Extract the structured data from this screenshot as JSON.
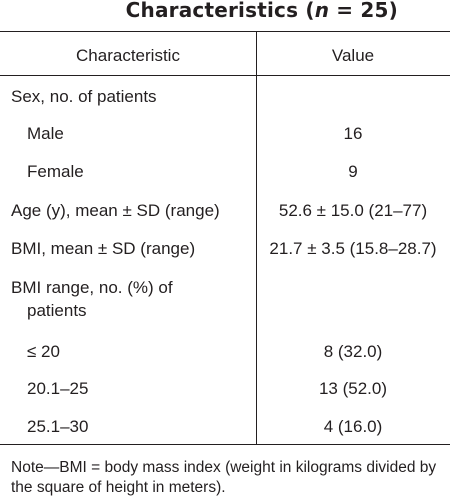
{
  "title": {
    "prefix": "Characteristics (",
    "n_symbol": "n",
    "suffix": " = 25)"
  },
  "table": {
    "headers": {
      "characteristic": "Characteristic",
      "value": "Value"
    },
    "rows": [
      {
        "label": "Sex, no. of patients",
        "value": ""
      },
      {
        "label": "Male",
        "value": "16"
      },
      {
        "label": "Female",
        "value": "9"
      },
      {
        "label": "Age (y), mean ± SD (range)",
        "value": "52.6 ± 15.0 (21–77)"
      },
      {
        "label": "BMI, mean ± SD (range)",
        "value": "21.7 ± 3.5 (15.8–28.7)"
      },
      {
        "label_line1": "BMI range, no. (%) of",
        "label_line2": "patients",
        "value": ""
      },
      {
        "label": "≤ 20",
        "value": "8 (32.0)"
      },
      {
        "label": "20.1–25",
        "value": "13 (52.0)"
      },
      {
        "label": "25.1–30",
        "value": "4 (16.0)"
      }
    ]
  },
  "footnote": "Note—BMI = body mass index (weight in kilograms divided by the square of height in meters)."
}
